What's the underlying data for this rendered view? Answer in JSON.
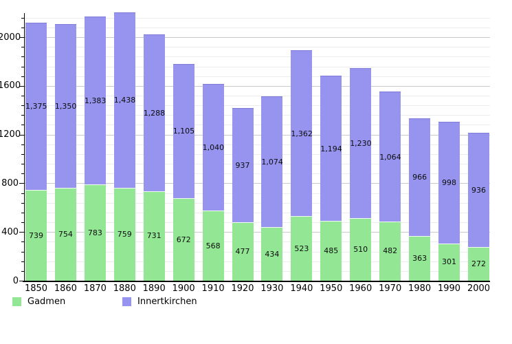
{
  "chart_data": {
    "type": "bar",
    "stacked": true,
    "title": "",
    "xlabel": "",
    "ylabel": "",
    "categories": [
      "1850",
      "1860",
      "1870",
      "1880",
      "1890",
      "1900",
      "1910",
      "1920",
      "1930",
      "1940",
      "1950",
      "1960",
      "1970",
      "1980",
      "1990",
      "2000"
    ],
    "series": [
      {
        "name": "Gadmen",
        "color": "#92e694",
        "values": [
          739,
          754,
          783,
          759,
          731,
          672,
          568,
          477,
          434,
          523,
          485,
          510,
          482,
          363,
          301,
          272
        ],
        "labels": [
          "739",
          "754",
          "783",
          "759",
          "731",
          "672",
          "568",
          "477",
          "434",
          "523",
          "485",
          "510",
          "482",
          "363",
          "301",
          "272"
        ]
      },
      {
        "name": "Innertkirchen",
        "color": "#9694ee",
        "values": [
          1375,
          1350,
          1383,
          1438,
          1288,
          1105,
          1040,
          937,
          1074,
          1362,
          1194,
          1230,
          1064,
          966,
          998,
          936
        ],
        "labels": [
          "1,375",
          "1,350",
          "1,383",
          "1,438",
          "1,288",
          "1,105",
          "1,040",
          "937",
          "1,074",
          "1,362",
          "1,194",
          "1,230",
          "1,064",
          "966",
          "998",
          "936"
        ]
      }
    ],
    "ylim": [
      0,
      2160
    ],
    "ytick_values": [
      0,
      400,
      800,
      1200,
      1600,
      2000
    ],
    "ytick_labels": [
      "0",
      "400",
      "800",
      "1200",
      "1600",
      "2000"
    ],
    "minor_grid_step": 80,
    "grid": "horizontal",
    "legend_position": "bottom-left",
    "colors": {
      "axis": "#000000",
      "major_grid": "#c9c9c9",
      "minor_grid": "#ececec",
      "purple_top_edge": "#7d7cd8",
      "segment_divider": "#f2fdf2",
      "value_label_text": "#0c0c0c"
    }
  },
  "legend": {
    "items": [
      {
        "label": "Gadmen",
        "color": "#92e694"
      },
      {
        "label": "Innertkirchen",
        "color": "#9694ee"
      }
    ]
  }
}
